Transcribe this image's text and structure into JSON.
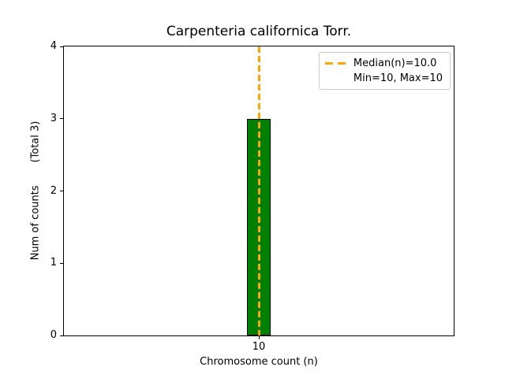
{
  "chart_data": {
    "type": "bar",
    "title": "Carpenteria californica Torr.",
    "xlabel": "Chromosome count (n)",
    "ylabel": "Num of counts       (Total 3)",
    "x": [
      10
    ],
    "values": [
      3
    ],
    "categories": [
      "10"
    ],
    "total_counts": 3,
    "xlim": [
      9,
      11
    ],
    "ylim": [
      0,
      4
    ],
    "yticks": [
      0,
      1,
      2,
      3,
      4
    ],
    "xticks": [
      10
    ],
    "bar_width_units": 0.12,
    "median_x": 10.0,
    "legend_entries": [
      "Median(n)=10.0",
      "Min=10, Max=10"
    ],
    "legend_position": "upper right",
    "grid": false,
    "colors": {
      "bar_fill": "#008000",
      "bar_edge": "#000000",
      "median_line": "#ffa500",
      "axis": "#000000",
      "text": "#000000",
      "legend_border": "#cccccc",
      "background": "#ffffff"
    }
  }
}
